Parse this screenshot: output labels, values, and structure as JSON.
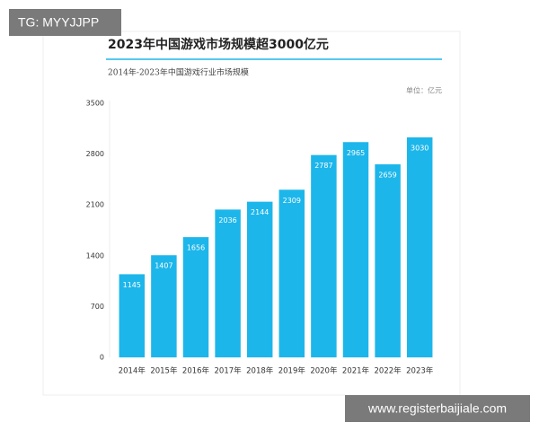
{
  "watermarks": {
    "top_left": "TG: MYYJJPP",
    "bottom_right": "www.registerbaijiale.com"
  },
  "chart_data": {
    "type": "bar",
    "title": "2023年中国游戏市场规模超3000亿元",
    "subtitle": "2014年-2023年中国游戏行业市场规模",
    "unit": "单位：亿元",
    "categories": [
      "2014年",
      "2015年",
      "2016年",
      "2017年",
      "2018年",
      "2019年",
      "2020年",
      "2021年",
      "2022年",
      "2023年"
    ],
    "values": [
      1145,
      1407,
      1656,
      2036,
      2144,
      2309,
      2787,
      2965,
      2659,
      3030
    ],
    "color": "#1db6ea",
    "ylim": [
      0,
      3500
    ],
    "yticks": [
      0,
      700,
      1400,
      2100,
      2800,
      3500
    ],
    "grid": false
  }
}
